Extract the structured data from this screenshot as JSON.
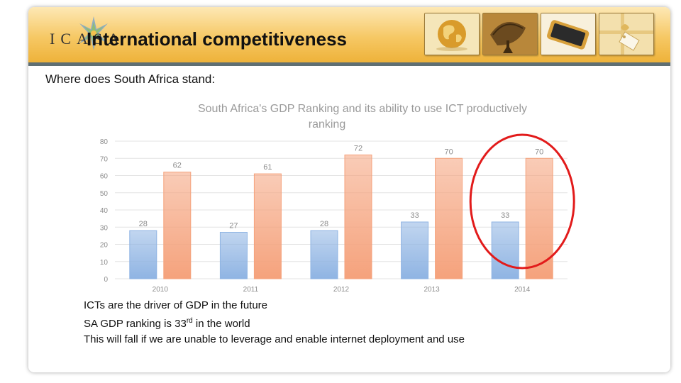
{
  "header": {
    "title": "International competitiveness",
    "logo_text": "ICASA"
  },
  "thumbnails": {
    "items": [
      {
        "name": "globe-thumbnail",
        "icon": "globe-icon"
      },
      {
        "name": "satellite-dish-thumbnail",
        "icon": "satellite-dish-icon"
      },
      {
        "name": "smartphone-thumbnail",
        "icon": "smartphone-icon"
      },
      {
        "name": "price-tag-thumbnail",
        "icon": "price-tag-icon"
      }
    ]
  },
  "content": {
    "subtitle": "Where does South Africa stand:",
    "bullets": {
      "line1": "ICTs are the driver of GDP in the future",
      "line2_pre": "SA GDP ranking is 33",
      "line2_sup": "rd",
      "line2_post": " in the world",
      "line3": "This will fall if we are unable to leverage and enable internet deployment and use"
    }
  },
  "colors": {
    "blue_bar": "#8fb4e3",
    "orange_bar": "#f5a27c",
    "highlight_ellipse": "#e21b1b",
    "header_gold": "#f6c864",
    "header_rule": "#5f6f73"
  },
  "chart_data": {
    "type": "bar",
    "title": "South Africa's GDP Ranking and its ability to use ICT productively ranking",
    "title_line1": "South Africa's GDP Ranking and its ability to use ICT productively",
    "title_line2": "ranking",
    "categories": [
      "2010",
      "2011",
      "2012",
      "2013",
      "2014"
    ],
    "series": [
      {
        "values": [
          28,
          27,
          28,
          33,
          33
        ],
        "color": "#8fb4e3"
      },
      {
        "values": [
          62,
          61,
          72,
          70,
          70
        ],
        "color": "#f5a27c"
      }
    ],
    "ylim": [
      0,
      80
    ],
    "yticks": [
      0,
      10,
      20,
      30,
      40,
      50,
      60,
      70,
      80
    ],
    "grid": true,
    "data_labels": true,
    "highlight_category": "2014"
  }
}
